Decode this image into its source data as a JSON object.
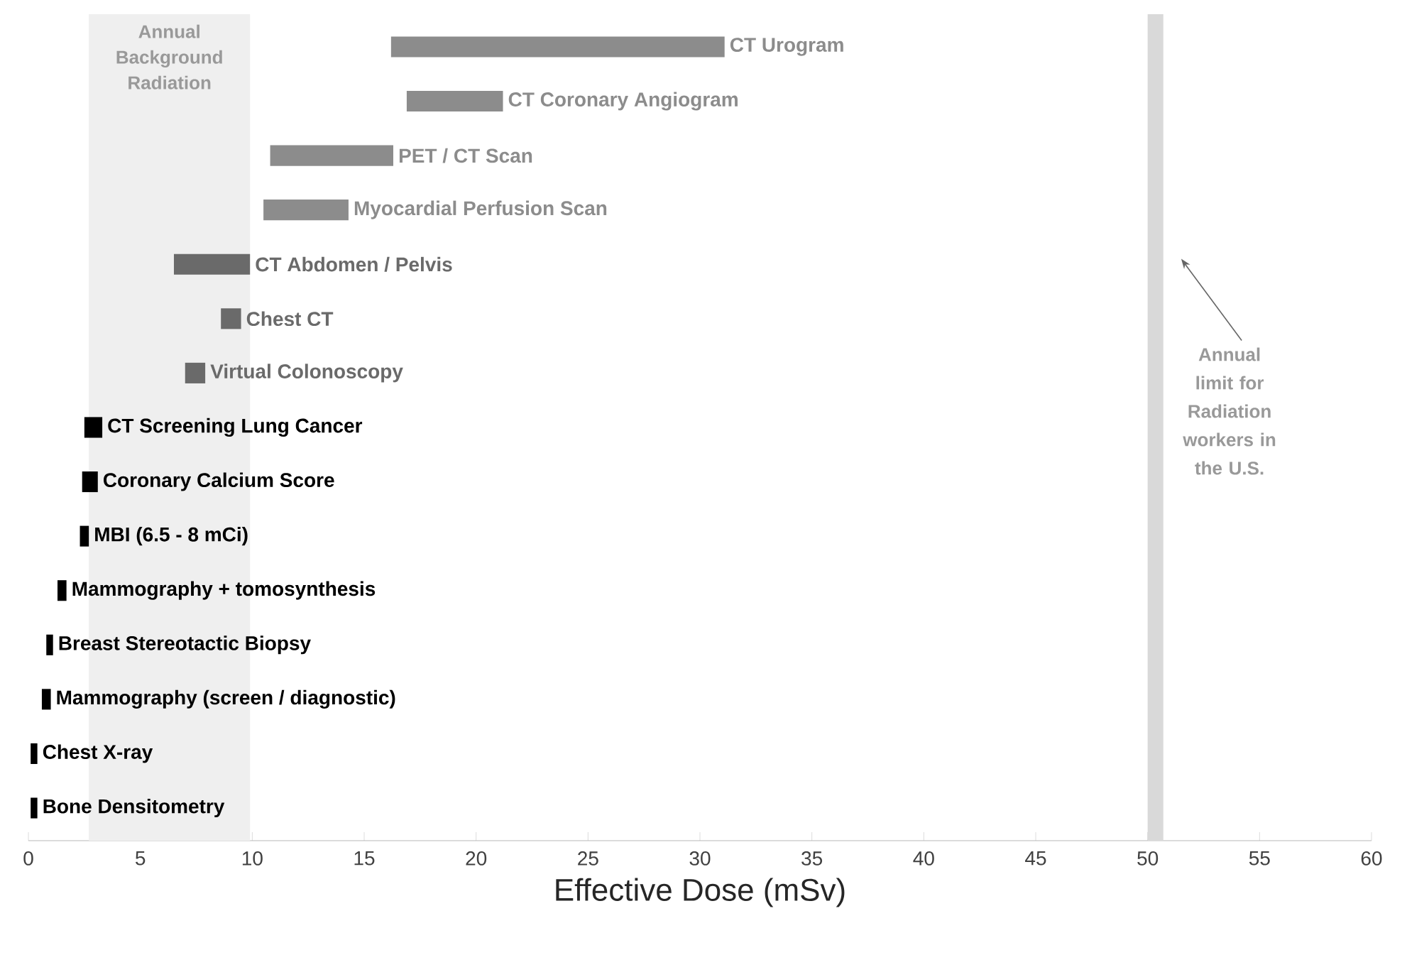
{
  "chart_data": {
    "type": "bar",
    "orientation": "horizontal",
    "xlabel": "Effective Dose (mSv)",
    "categories": [
      "CT Urogram",
      "CT Coronary Angiogram",
      "PET / CT Scan",
      "Myocardial Perfusion Scan",
      "CT Abdomen / Pelvis",
      "Chest CT",
      "Virtual Colonoscopy",
      "CT Screening Lung Cancer",
      "Coronary Calcium Score",
      "MBI (6.5 - 8 mCi)",
      "Mammography + tomosynthesis",
      "Breast Stereotactic Biopsy",
      "Mammography (screen / diagnostic)",
      "Chest X-ray",
      "Bone Densitometry"
    ],
    "base": [
      16.2,
      16.9,
      10.8,
      10.5,
      6.5,
      8.6,
      7.0,
      2.5,
      2.4,
      2.3,
      1.3,
      0.8,
      0.6,
      0.1,
      0.1
    ],
    "values": [
      14.9,
      4.3,
      5.5,
      3.8,
      3.4,
      0.9,
      0.9,
      0.8,
      0.7,
      0.4,
      0.4,
      0.3,
      0.4,
      0.3,
      0.3
    ],
    "colors": [
      "#8c8c8c",
      "#8c8c8c",
      "#8c8c8c",
      "#8c8c8c",
      "#6a6a6a",
      "#6a6a6a",
      "#6a6a6a",
      "#000000",
      "#000000",
      "#000000",
      "#000000",
      "#000000",
      "#000000",
      "#000000",
      "#000000"
    ],
    "xlim": [
      0,
      60
    ],
    "xticks": [
      0,
      5,
      10,
      15,
      20,
      25,
      30,
      35,
      40,
      45,
      50,
      55,
      60
    ],
    "bands": [
      {
        "axis": "x",
        "from": 2.7,
        "to": 9.9,
        "label": "Annual Background Radiation",
        "color": "#efefef"
      },
      {
        "axis": "x",
        "from": 50,
        "to": 50.7,
        "label": "Annual limit for Radiation workers in the U.S.",
        "color": "#d9d9d9"
      }
    ],
    "tick_labels": "x"
  }
}
